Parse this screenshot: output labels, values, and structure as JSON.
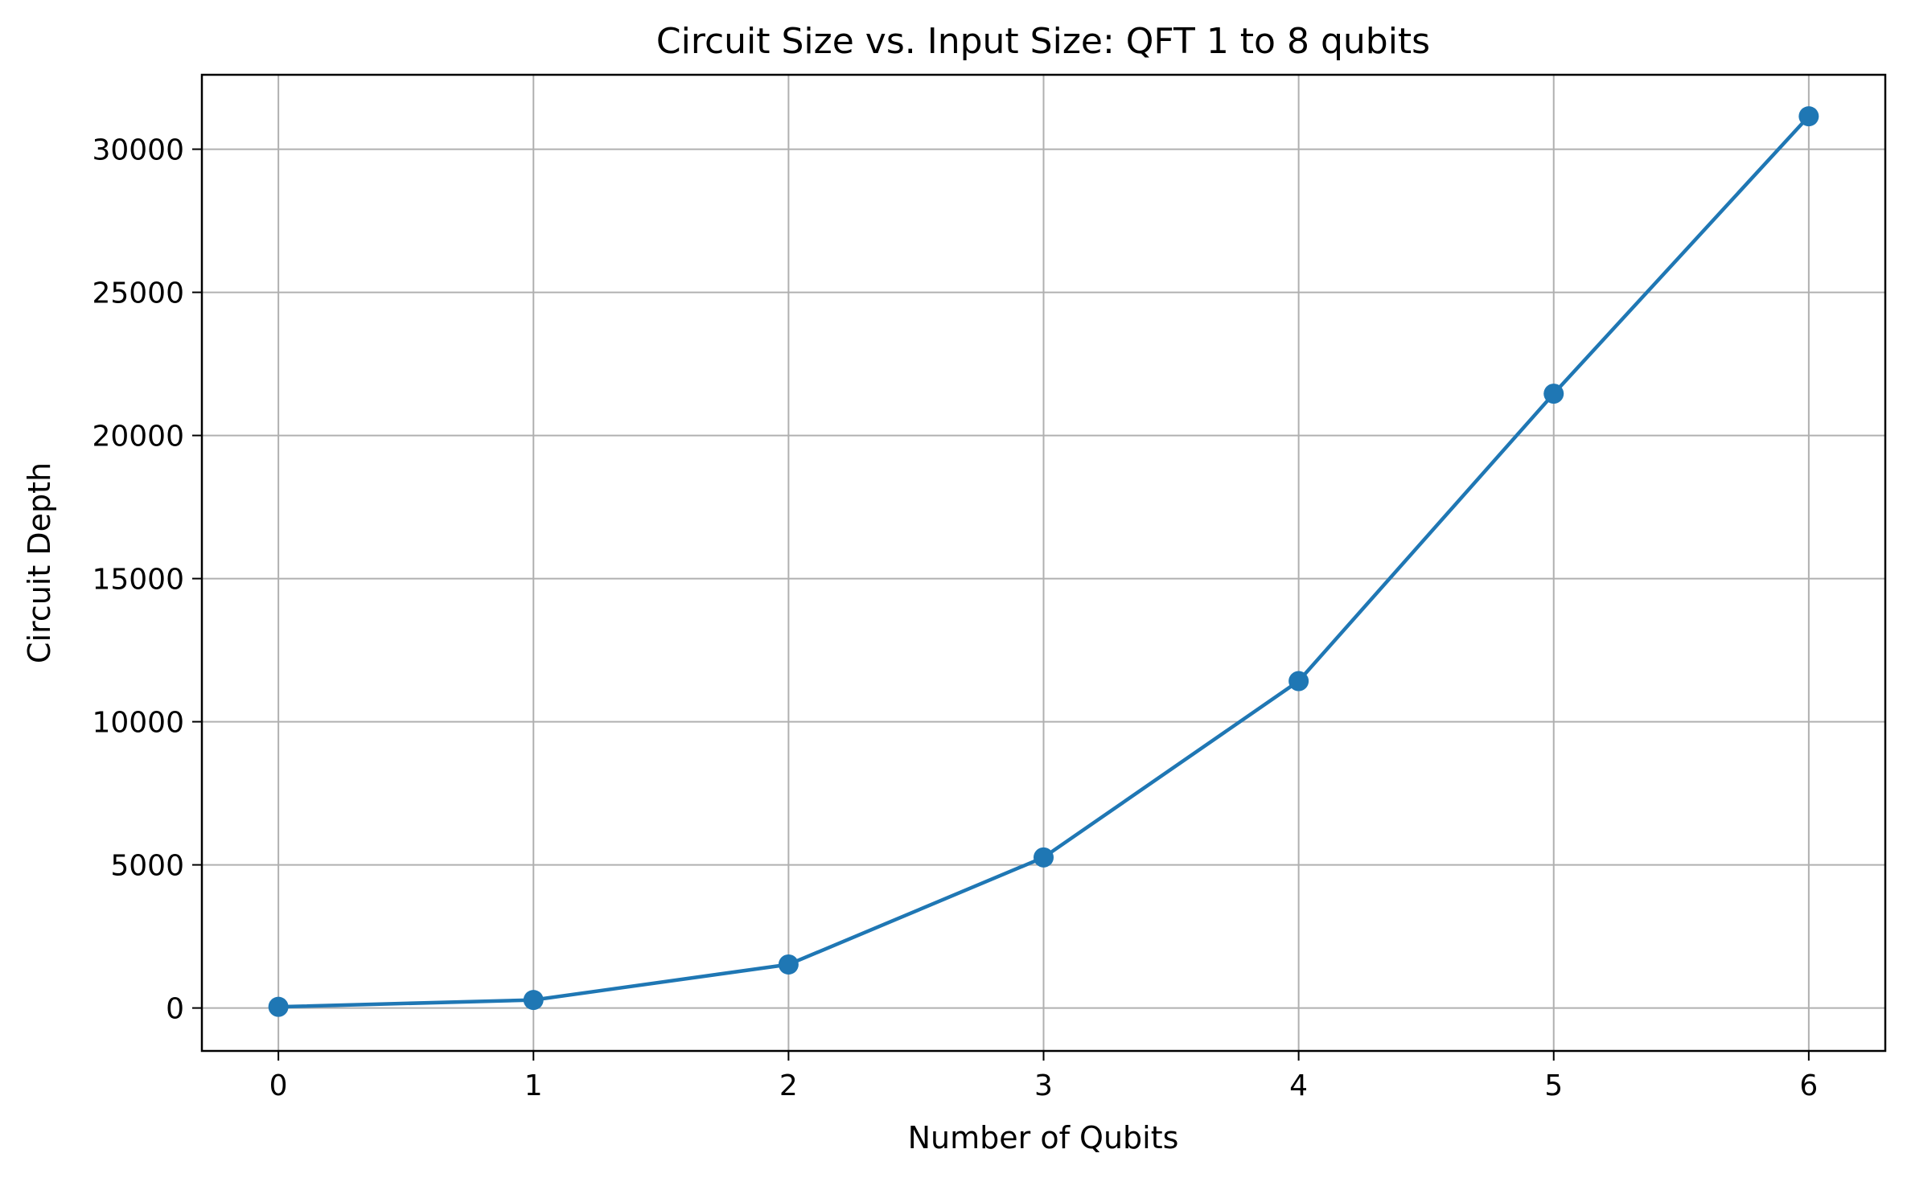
{
  "chart_data": {
    "type": "line",
    "title": "Circuit Size vs. Input Size: QFT 1 to 8 qubits",
    "xlabel": "Number of Qubits",
    "ylabel": "Circuit Depth",
    "x": [
      0,
      1,
      2,
      3,
      4,
      5,
      6
    ],
    "series": [
      {
        "values": [
          40,
          280,
          1520,
          5260,
          11420,
          21460,
          31150
        ],
        "color": "#1f77b4",
        "marker": "circle"
      }
    ],
    "xlim": [
      -0.3,
      6.3
    ],
    "ylim": [
      -1500,
      32600
    ],
    "xticks": [
      0,
      1,
      2,
      3,
      4,
      5,
      6
    ],
    "yticks": [
      0,
      5000,
      10000,
      15000,
      20000,
      25000,
      30000
    ],
    "xtick_labels": [
      "0",
      "1",
      "2",
      "3",
      "4",
      "5",
      "6"
    ],
    "ytick_labels": [
      "0",
      "5000",
      "10000",
      "15000",
      "20000",
      "25000",
      "30000"
    ],
    "grid": true,
    "grid_color": "#b0b0b0",
    "legend": false
  }
}
